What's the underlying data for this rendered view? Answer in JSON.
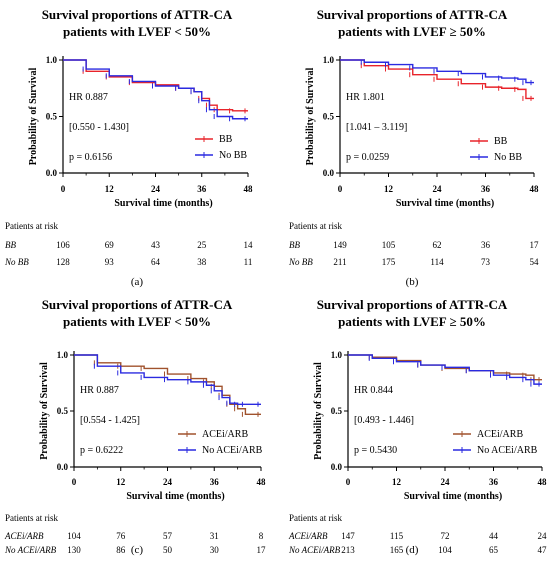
{
  "chart_data": [
    {
      "type": "line",
      "subtype": "kaplan-meier",
      "title_line1": "Survival proportions of ATTR-CA",
      "title_line2": "patients with LVEF < 50%",
      "xlabel": "Survival time (months)",
      "ylabel": "Probability of Survival",
      "xticks": [
        "0",
        "12",
        "24",
        "36",
        "48"
      ],
      "yticks": [
        "0.0",
        "0.5",
        "1.0"
      ],
      "xlim": [
        0,
        48
      ],
      "ylim": [
        0,
        1
      ],
      "hr": "HR 0.887",
      "ci": "[0.550 - 1.430]",
      "p": "p = 0.6156",
      "legend_position": "center-right",
      "series": [
        {
          "name": "BB",
          "color": "#e8232a",
          "x": [
            0,
            6,
            12,
            18,
            24,
            30,
            34,
            36,
            38,
            40,
            44,
            48
          ],
          "y": [
            1.0,
            0.9,
            0.85,
            0.8,
            0.78,
            0.75,
            0.72,
            0.66,
            0.6,
            0.56,
            0.55,
            0.55
          ]
        },
        {
          "name": "No BB",
          "color": "#2a2ae0",
          "x": [
            0,
            6,
            12,
            18,
            24,
            30,
            34,
            36,
            38,
            40,
            44,
            48
          ],
          "y": [
            1.0,
            0.92,
            0.86,
            0.81,
            0.77,
            0.75,
            0.72,
            0.64,
            0.56,
            0.5,
            0.48,
            0.48
          ]
        }
      ],
      "risk_label": "Patients at risk",
      "risk_rows": [
        {
          "label": "BB",
          "values": [
            "106",
            "69",
            "43",
            "25",
            "14"
          ]
        },
        {
          "label": "No BB",
          "values": [
            "128",
            "93",
            "64",
            "38",
            "11"
          ]
        }
      ],
      "caption": "(a)"
    },
    {
      "type": "line",
      "subtype": "kaplan-meier",
      "title_line1": "Survival proportions of ATTR-CA",
      "title_line2": "patients with LVEF ≥ 50%",
      "xlabel": "Survival time (months)",
      "ylabel": "Probability of Survival",
      "xticks": [
        "0",
        "12",
        "24",
        "36",
        "48"
      ],
      "yticks": [
        "0.0",
        "0.5",
        "1.0"
      ],
      "xlim": [
        0,
        48
      ],
      "ylim": [
        0,
        1
      ],
      "hr": "HR 1.801",
      "ci": "[1.041 – 3.119]",
      "p": "p = 0.0259",
      "legend_position": "center-right",
      "series": [
        {
          "name": "BB",
          "color": "#e8232a",
          "x": [
            0,
            6,
            12,
            18,
            24,
            30,
            36,
            40,
            44,
            46,
            48
          ],
          "y": [
            1.0,
            0.95,
            0.92,
            0.87,
            0.83,
            0.79,
            0.76,
            0.75,
            0.74,
            0.66,
            0.66
          ]
        },
        {
          "name": "No BB",
          "color": "#2a2ae0",
          "x": [
            0,
            6,
            12,
            18,
            24,
            30,
            36,
            40,
            44,
            46,
            48
          ],
          "y": [
            1.0,
            0.98,
            0.96,
            0.93,
            0.9,
            0.88,
            0.85,
            0.84,
            0.83,
            0.8,
            0.8
          ]
        }
      ],
      "risk_label": "Patients at risk",
      "risk_rows": [
        {
          "label": "BB",
          "values": [
            "149",
            "105",
            "62",
            "36",
            "17"
          ]
        },
        {
          "label": "No BB",
          "values": [
            "211",
            "175",
            "114",
            "73",
            "54"
          ]
        }
      ],
      "caption": "(b)"
    },
    {
      "type": "line",
      "subtype": "kaplan-meier",
      "title_line1": "Survival proportions of ATTR-CA",
      "title_line2": "patients with LVEF < 50%",
      "xlabel": "Survival time (months)",
      "ylabel": "Probability of Survival",
      "xticks": [
        "0",
        "12",
        "24",
        "36",
        "48"
      ],
      "yticks": [
        "0.0",
        "0.5",
        "1.0"
      ],
      "xlim": [
        0,
        48
      ],
      "ylim": [
        0,
        1
      ],
      "hr": "HR 0.887",
      "ci": "[0.554 - 1.425]",
      "p": "p = 0.6222",
      "legend_position": "bottom-right",
      "series": [
        {
          "name": "ACEi/ARB",
          "color": "#a0522d",
          "x": [
            0,
            6,
            12,
            18,
            24,
            30,
            34,
            36,
            38,
            40,
            42,
            44,
            48
          ],
          "y": [
            1.0,
            0.93,
            0.9,
            0.88,
            0.83,
            0.79,
            0.76,
            0.72,
            0.64,
            0.56,
            0.52,
            0.47,
            0.47
          ]
        },
        {
          "name": "No ACEi/ARB",
          "color": "#2a2ae0",
          "x": [
            0,
            6,
            12,
            18,
            24,
            30,
            34,
            36,
            38,
            40,
            42,
            44,
            48
          ],
          "y": [
            1.0,
            0.9,
            0.84,
            0.8,
            0.78,
            0.76,
            0.73,
            0.68,
            0.62,
            0.57,
            0.56,
            0.56,
            0.56
          ]
        }
      ],
      "risk_label": "Patients at risk",
      "risk_rows": [
        {
          "label": "ACEi/ARB",
          "values": [
            "104",
            "76",
            "57",
            "31",
            "8"
          ]
        },
        {
          "label": "No ACEi/ARB",
          "values": [
            "130",
            "86",
            "50",
            "30",
            "17"
          ]
        }
      ],
      "caption": "(c)"
    },
    {
      "type": "line",
      "subtype": "kaplan-meier",
      "title_line1": "Survival proportions of ATTR-CA",
      "title_line2": "patients with LVEF ≥ 50%",
      "xlabel": "Survival time (months)",
      "ylabel": "Probability of Survival",
      "xticks": [
        "0",
        "12",
        "24",
        "36",
        "48"
      ],
      "yticks": [
        "0.0",
        "0.5",
        "1.0"
      ],
      "xlim": [
        0,
        48
      ],
      "ylim": [
        0,
        1
      ],
      "hr": "HR 0.844",
      "ci": "[0.493 - 1.446]",
      "p": "p = 0.5430",
      "legend_position": "center-right",
      "series": [
        {
          "name": "ACEi/ARB",
          "color": "#a0522d",
          "x": [
            0,
            6,
            12,
            18,
            24,
            30,
            36,
            40,
            44,
            46,
            48
          ],
          "y": [
            1.0,
            0.98,
            0.95,
            0.91,
            0.88,
            0.86,
            0.84,
            0.83,
            0.82,
            0.78,
            0.78
          ]
        },
        {
          "name": "No ACEi/ARB",
          "color": "#2a2ae0",
          "x": [
            0,
            6,
            12,
            18,
            24,
            30,
            36,
            40,
            44,
            46,
            48
          ],
          "y": [
            1.0,
            0.97,
            0.94,
            0.91,
            0.89,
            0.86,
            0.82,
            0.8,
            0.78,
            0.74,
            0.74
          ]
        }
      ],
      "risk_label": "Patients at risk",
      "risk_rows": [
        {
          "label": "ACEi/ARB",
          "values": [
            "147",
            "115",
            "72",
            "44",
            "24"
          ]
        },
        {
          "label": "No ACEi/ARB",
          "values": [
            "213",
            "165",
            "104",
            "65",
            "47"
          ]
        }
      ],
      "caption": "(d)"
    }
  ]
}
